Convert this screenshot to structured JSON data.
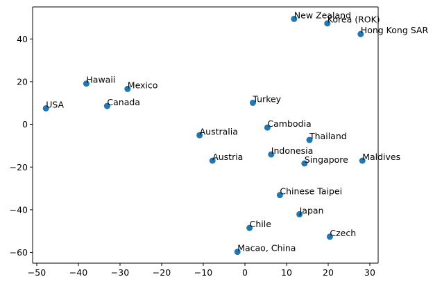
{
  "chart_data": {
    "type": "scatter",
    "title": "",
    "xlabel": "",
    "ylabel": "",
    "xlim": [
      -51,
      32
    ],
    "ylim": [
      -65,
      55
    ],
    "x_ticks": [
      -50,
      -40,
      -30,
      -20,
      -10,
      0,
      10,
      20,
      30
    ],
    "y_ticks": [
      -60,
      -40,
      -20,
      0,
      20,
      40
    ],
    "x_tick_labels": [
      "−50",
      "−40",
      "−30",
      "−20",
      "−10",
      "0",
      "10",
      "20",
      "30"
    ],
    "y_tick_labels": [
      "−60",
      "−40",
      "−20",
      "0",
      "20",
      "40"
    ],
    "grid": false,
    "marker_color": "#1f77b4",
    "points": [
      {
        "label": "New Zealand",
        "x": 11.8,
        "y": 49.4
      },
      {
        "label": "Korea (ROK)",
        "x": 19.8,
        "y": 47.3
      },
      {
        "label": "Hong Kong SAR",
        "x": 27.8,
        "y": 42.3
      },
      {
        "label": "Hawaii",
        "x": -38.1,
        "y": 19.1
      },
      {
        "label": "Mexico",
        "x": -28.2,
        "y": 16.6
      },
      {
        "label": "USA",
        "x": -47.8,
        "y": 7.5
      },
      {
        "label": "Canada",
        "x": -33.1,
        "y": 8.6
      },
      {
        "label": "Turkey",
        "x": 1.9,
        "y": 10.1
      },
      {
        "label": "Cambodia",
        "x": 5.4,
        "y": -1.5
      },
      {
        "label": "Australia",
        "x": -10.9,
        "y": -5.1
      },
      {
        "label": "Thailand",
        "x": 15.5,
        "y": -7.3
      },
      {
        "label": "Austria",
        "x": -7.8,
        "y": -17.0
      },
      {
        "label": "Indonesia",
        "x": 6.3,
        "y": -14.1
      },
      {
        "label": "Singapore",
        "x": 14.3,
        "y": -18.3
      },
      {
        "label": "Maldives",
        "x": 28.2,
        "y": -17.0
      },
      {
        "label": "Chinese Taipei",
        "x": 8.4,
        "y": -33.1
      },
      {
        "label": "Japan",
        "x": 13.1,
        "y": -42.1
      },
      {
        "label": "Chile",
        "x": 1.1,
        "y": -48.5
      },
      {
        "label": "Czech",
        "x": 20.4,
        "y": -52.6
      },
      {
        "label": "Macao, China",
        "x": -1.8,
        "y": -59.7
      }
    ]
  }
}
